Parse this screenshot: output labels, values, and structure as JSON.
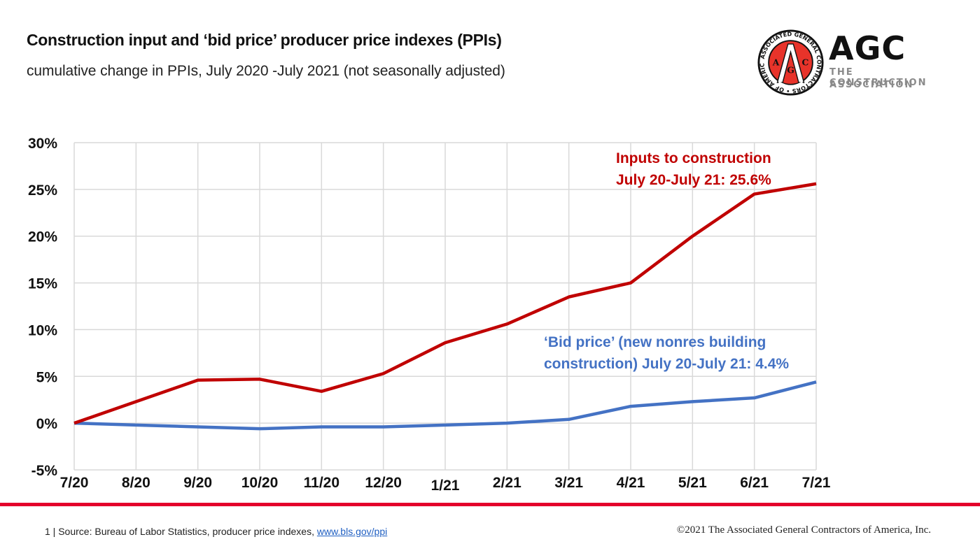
{
  "header": {
    "title": "Construction input and ‘bid price’ producer price indexes (PPIs)",
    "subtitle": "cumulative change in PPIs, July 2020 -July 2021 (not seasonally adjusted)"
  },
  "logo": {
    "wordmark": "AGC",
    "line1": "THE CONSTRUCTION",
    "line2": "ASSOCIATION",
    "seal_ring_text": "ASSOCIATED GENERAL CONTRACTORS • OF AMERICA •",
    "seal_letters": [
      "A",
      "G",
      "C"
    ],
    "seal_color": "#e8332a"
  },
  "chart_data": {
    "type": "line",
    "title": "Construction input and ‘bid price’ producer price indexes (PPIs)",
    "subtitle": "cumulative change in PPIs, July 2020 -July 2021 (not seasonally adjusted)",
    "xlabel": "",
    "ylabel": "",
    "categories": [
      "7/20",
      "8/20",
      "9/20",
      "10/20",
      "11/20",
      "12/20",
      "1/21",
      "2/21",
      "3/21",
      "4/21",
      "5/21",
      "6/21",
      "7/21"
    ],
    "ylim": [
      -5,
      30
    ],
    "yticks": [
      -5,
      0,
      5,
      10,
      15,
      20,
      25,
      30
    ],
    "ytick_labels": [
      "-5%",
      "0%",
      "5%",
      "10%",
      "15%",
      "20%",
      "25%",
      "30%"
    ],
    "grid": true,
    "legend": "none (inline annotations)",
    "series": [
      {
        "name": "Inputs to construction",
        "color": "#c00000",
        "values": [
          0,
          2.3,
          4.6,
          4.7,
          3.4,
          5.3,
          8.6,
          10.6,
          13.5,
          15.0,
          20.0,
          24.5,
          25.6
        ],
        "annotation": [
          "Inputs to construction",
          "July 20-July 21: 25.6%"
        ]
      },
      {
        "name": "‘Bid price’ (new nonres building construction)",
        "color": "#4472c4",
        "values": [
          0,
          -0.2,
          -0.4,
          -0.6,
          -0.4,
          -0.4,
          -0.2,
          0.0,
          0.4,
          1.8,
          2.3,
          2.7,
          4.4
        ],
        "annotation": [
          "‘Bid price’ (new nonres building",
          "construction) July 20-July 21: 4.4%"
        ]
      }
    ]
  },
  "footer": {
    "page_number": "1",
    "source_text": " | Source: Bureau of Labor Statistics, producer price indexes, ",
    "source_link": "www.bls.gov/ppi",
    "copyright": "©2021 The Associated General Contractors of America, Inc."
  }
}
